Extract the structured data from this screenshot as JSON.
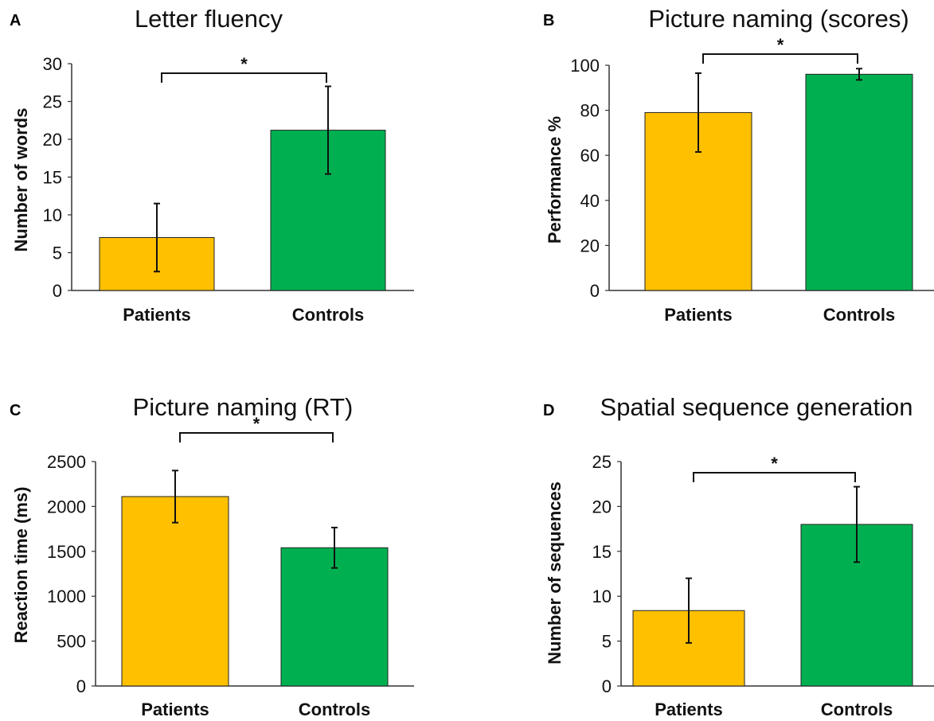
{
  "colors": {
    "patients": "#FFC000",
    "controls": "#00B050",
    "axis": "#333333",
    "bar_outline": "#222222"
  },
  "chart_data": [
    {
      "type": "bar",
      "panel": "A",
      "title": "Letter fluency",
      "ylabel": "Number of words",
      "xlabel": "",
      "categories": [
        "Patients",
        "Controls"
      ],
      "values": [
        7.0,
        21.2
      ],
      "error": [
        4.5,
        5.8
      ],
      "ylim": [
        0,
        30
      ],
      "yticks": [
        0,
        5,
        10,
        15,
        20,
        25,
        30
      ],
      "significance": "*",
      "grid": false
    },
    {
      "type": "bar",
      "panel": "B",
      "title": "Picture naming (scores)",
      "ylabel": "Performance %",
      "xlabel": "",
      "categories": [
        "Patients",
        "Controls"
      ],
      "values": [
        79,
        96
      ],
      "error": [
        17.5,
        2.5
      ],
      "ylim": [
        0,
        100
      ],
      "yticks": [
        0,
        20,
        40,
        60,
        80,
        100
      ],
      "significance": "*",
      "grid": false
    },
    {
      "type": "bar",
      "panel": "C",
      "title": "Picture naming (RT)",
      "ylabel": "Reaction time (ms)",
      "xlabel": "",
      "categories": [
        "Patients",
        "Controls"
      ],
      "values": [
        2110,
        1540
      ],
      "error": [
        290,
        225
      ],
      "ylim": [
        0,
        2500
      ],
      "yticks": [
        0,
        500,
        1000,
        1500,
        2000,
        2500
      ],
      "significance": "*",
      "grid": false
    },
    {
      "type": "bar",
      "panel": "D",
      "title": "Spatial sequence generation",
      "ylabel": "Number of sequences",
      "xlabel": "",
      "categories": [
        "Patients",
        "Controls"
      ],
      "values": [
        8.4,
        18.0
      ],
      "error": [
        3.6,
        4.2
      ],
      "ylim": [
        0,
        25
      ],
      "yticks": [
        0,
        5,
        10,
        15,
        20,
        25
      ],
      "significance": "*",
      "grid": false
    }
  ]
}
